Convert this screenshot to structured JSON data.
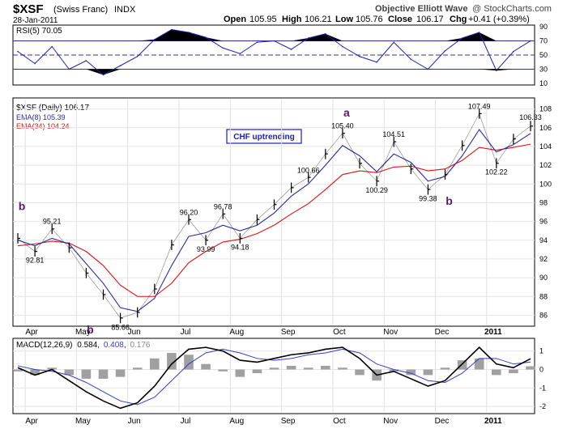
{
  "header": {
    "symbol": "$XSF",
    "name": "(Swiss Franc)",
    "exchange": "INDX",
    "date": "28-Jan-2011",
    "source": "Objective Elliott Wave",
    "copyright": "@ StockCharts.com",
    "quote": {
      "open_label": "Open",
      "open": "105.95",
      "high_label": "High",
      "high": "106.21",
      "low_label": "Low",
      "low": "105.76",
      "close_label": "Close",
      "close": "106.17",
      "chg_label": "Chg",
      "chg": "+0.41 (+0.39%)"
    }
  },
  "colors": {
    "price": "#000000",
    "ema8": "#2a2aa0",
    "ema34": "#e01010",
    "rsi": "#2020b0",
    "macd": "#000000",
    "signal": "#3a3ac8",
    "histogram": "#a0a0a0",
    "label_purple": "#5a1a6a",
    "legend_box_border": "#1a1ad0"
  },
  "chart_data": [
    {
      "type": "line",
      "panel": "rsi",
      "legend": "RSI(5) 70.05",
      "ylim": [
        10,
        90
      ],
      "yticks": [
        10,
        30,
        50,
        70,
        90
      ],
      "reference_lines": [
        30,
        50,
        70
      ],
      "x": [
        "Apr",
        "Apr",
        "Apr",
        "May",
        "May",
        "May",
        "Jun",
        "Jun",
        "Jun",
        "Jul",
        "Jul",
        "Jul",
        "Aug",
        "Aug",
        "Aug",
        "Sep",
        "Sep",
        "Sep",
        "Oct",
        "Oct",
        "Oct",
        "Nov",
        "Nov",
        "Nov",
        "Dec",
        "Dec",
        "Dec",
        "2011",
        "2011",
        "2011",
        "2011"
      ],
      "values": [
        55,
        38,
        62,
        30,
        42,
        22,
        35,
        48,
        72,
        86,
        82,
        75,
        60,
        52,
        68,
        70,
        58,
        74,
        80,
        62,
        48,
        40,
        68,
        44,
        30,
        56,
        74,
        82,
        28,
        55,
        70.05
      ]
    },
    {
      "type": "line",
      "panel": "price",
      "ylim": [
        85,
        109
      ],
      "yticks": [
        86,
        88,
        90,
        92,
        94,
        96,
        98,
        100,
        102,
        104,
        106,
        108
      ],
      "xticks": [
        "Apr",
        "May",
        "Jun",
        "Jul",
        "Aug",
        "Sep",
        "Oct",
        "Nov",
        "Dec",
        "2011"
      ],
      "series": [
        {
          "name": "$XSF (Daily) 106.17",
          "x": [
            "Apr",
            "Apr",
            "Apr",
            "May",
            "May",
            "May",
            "Jun",
            "Jun",
            "Jun",
            "Jul",
            "Jul",
            "Jul",
            "Aug",
            "Aug",
            "Aug",
            "Sep",
            "Sep",
            "Sep",
            "Oct",
            "Oct",
            "Oct",
            "Nov",
            "Nov",
            "Nov",
            "Dec",
            "Dec",
            "Dec",
            "2011",
            "2011",
            "2011",
            "2011"
          ],
          "values": [
            94.2,
            92.8,
            95.2,
            93.2,
            90.5,
            88.2,
            85.7,
            86.3,
            88.8,
            93.5,
            96.2,
            94.0,
            96.8,
            94.2,
            96.2,
            97.8,
            99.6,
            100.7,
            103.2,
            105.4,
            102.2,
            100.3,
            104.5,
            101.6,
            99.4,
            101.0,
            104.1,
            107.5,
            102.2,
            104.8,
            106.17
          ]
        },
        {
          "name": "EMA(8) 105.39",
          "values": [
            94.0,
            93.4,
            94.2,
            93.6,
            91.5,
            89.4,
            86.8,
            86.4,
            87.8,
            91.3,
            94.4,
            94.8,
            95.6,
            95.0,
            95.6,
            96.9,
            98.7,
            100.0,
            102.0,
            104.1,
            103.0,
            101.3,
            103.2,
            102.3,
            100.3,
            100.8,
            103.0,
            105.8,
            103.4,
            104.2,
            105.39
          ]
        },
        {
          "name": "EMA(34) 104.24",
          "values": [
            93.4,
            93.6,
            93.9,
            93.7,
            92.8,
            91.3,
            89.2,
            88.0,
            88.0,
            89.4,
            91.6,
            92.8,
            93.8,
            94.1,
            94.7,
            95.6,
            96.8,
            97.9,
            99.4,
            101.0,
            101.4,
            101.2,
            101.8,
            101.9,
            101.4,
            101.6,
            102.5,
            103.9,
            103.6,
            103.9,
            104.24
          ]
        }
      ],
      "annotations": [
        {
          "x": "Apr",
          "y": 95.21,
          "text": "95.21"
        },
        {
          "x": "Apr",
          "y": 92.81,
          "text": "92.81"
        },
        {
          "x": "Jun",
          "y": 85.66,
          "text": "85.66"
        },
        {
          "x": "Jul",
          "y": 96.2,
          "text": "96.20"
        },
        {
          "x": "Jul",
          "y": 93.99,
          "text": "93.99"
        },
        {
          "x": "Aug",
          "y": 96.78,
          "text": "96.78"
        },
        {
          "x": "Aug",
          "y": 94.18,
          "text": "94.18"
        },
        {
          "x": "Sep",
          "y": 100.66,
          "text": "100.66"
        },
        {
          "x": "Oct",
          "y": 105.4,
          "text": "105.40"
        },
        {
          "x": "Nov",
          "y": 100.29,
          "text": "100.29"
        },
        {
          "x": "Nov",
          "y": 104.51,
          "text": "104.51"
        },
        {
          "x": "Dec",
          "y": 99.38,
          "text": "99.38"
        },
        {
          "x": "2011",
          "y": 107.49,
          "text": "107.49"
        },
        {
          "x": "2011",
          "y": 102.22,
          "text": "102.22"
        },
        {
          "x": "2011",
          "y": 106.33,
          "text": "106.33"
        }
      ],
      "wave_labels": [
        {
          "x": "Apr",
          "text": "b"
        },
        {
          "x": "Jun",
          "text": "b"
        },
        {
          "x": "Oct",
          "text": "a"
        },
        {
          "x": "Dec",
          "text": "b"
        }
      ],
      "callout": "CHF uptrending"
    },
    {
      "type": "line",
      "panel": "macd",
      "legend_prefix": "MACD(12,26,9)",
      "legend_macd": "0.584",
      "legend_signal": "0.408",
      "legend_hist": "0.176",
      "ylim": [
        -2.3,
        1.6
      ],
      "yticks": [
        -2,
        -1,
        0,
        1
      ],
      "series": [
        {
          "name": "MACD",
          "values": [
            0.1,
            -0.3,
            0.0,
            -0.6,
            -1.2,
            -1.7,
            -2.1,
            -1.8,
            -0.9,
            0.3,
            1.1,
            1.2,
            1.0,
            0.5,
            0.4,
            0.6,
            0.8,
            0.9,
            1.1,
            1.2,
            0.6,
            -0.3,
            -0.1,
            -0.5,
            -0.9,
            -0.6,
            0.3,
            1.2,
            0.3,
            0.1,
            0.584
          ]
        },
        {
          "name": "Signal",
          "values": [
            0.2,
            0.0,
            -0.1,
            -0.3,
            -0.7,
            -1.2,
            -1.7,
            -1.9,
            -1.5,
            -0.6,
            0.3,
            0.9,
            1.1,
            0.9,
            0.6,
            0.5,
            0.6,
            0.8,
            0.9,
            1.1,
            0.9,
            0.3,
            0.0,
            -0.2,
            -0.6,
            -0.7,
            -0.2,
            0.6,
            0.6,
            0.3,
            0.408
          ]
        },
        {
          "name": "Histogram",
          "values": [
            -0.1,
            -0.3,
            0.1,
            -0.3,
            -0.5,
            -0.5,
            -0.4,
            0.1,
            0.6,
            0.9,
            0.8,
            0.3,
            -0.1,
            -0.4,
            -0.2,
            0.1,
            0.2,
            0.1,
            0.2,
            0.1,
            -0.3,
            -0.6,
            -0.1,
            -0.3,
            -0.3,
            0.1,
            0.5,
            0.6,
            -0.3,
            -0.2,
            0.176
          ]
        }
      ]
    }
  ]
}
